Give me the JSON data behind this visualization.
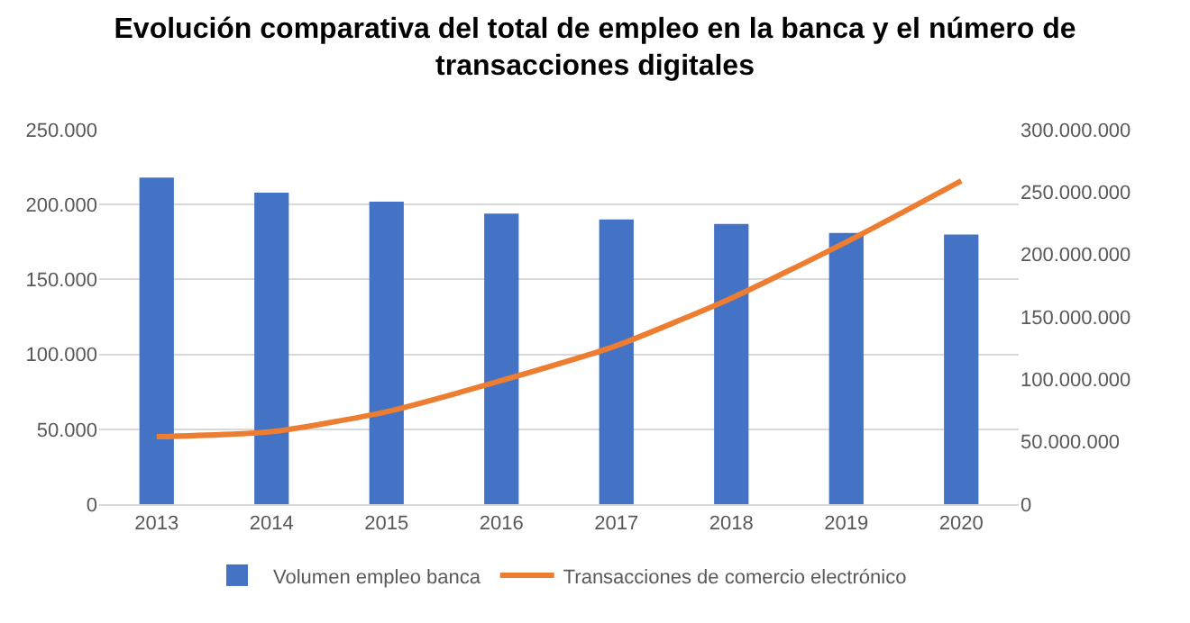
{
  "chart_data": {
    "type": "bar",
    "title": "Evolución comparativa del total de empleo en la banca y el número de transacciones digitales",
    "categories": [
      "2013",
      "2014",
      "2015",
      "2016",
      "2017",
      "2018",
      "2019",
      "2020"
    ],
    "series": [
      {
        "name": "Volumen empleo banca",
        "color": "#4472c4",
        "values": [
          218000,
          208000,
          202000,
          194000,
          190000,
          187000,
          181000,
          180000
        ]
      },
      {
        "name": "Transacciones de comercio electrónico",
        "type": "line",
        "axis": "y2",
        "color": "#ed7d31",
        "values": [
          54000000,
          58000000,
          74000000,
          99000000,
          127000000,
          165000000,
          210000000,
          259000000
        ]
      }
    ],
    "ylim": [
      0,
      250000
    ],
    "yticks": [
      0,
      {
        "value": 50000,
        "label": "50.000"
      },
      {
        "value": 100000,
        "label": "100.000"
      },
      {
        "value": 150000,
        "label": "150.000"
      },
      {
        "value": 200000,
        "label": "200.000"
      },
      {
        "value": 250000,
        "label": "250.000"
      }
    ],
    "y2lim": [
      0,
      300000000
    ],
    "y2ticks": [
      0,
      {
        "value": 50000000,
        "label": "50.000.000"
      },
      {
        "value": 100000000,
        "label": "100.000.000"
      },
      {
        "value": 150000000,
        "label": "150.000.000"
      },
      {
        "value": 200000000,
        "label": "200.000.000"
      },
      {
        "value": 250000000,
        "label": "250.000.000"
      },
      {
        "value": 300000000,
        "label": "300.000.000"
      }
    ],
    "grid": "y",
    "legend": "bottom",
    "marker": "none",
    "line_style": "solid"
  }
}
